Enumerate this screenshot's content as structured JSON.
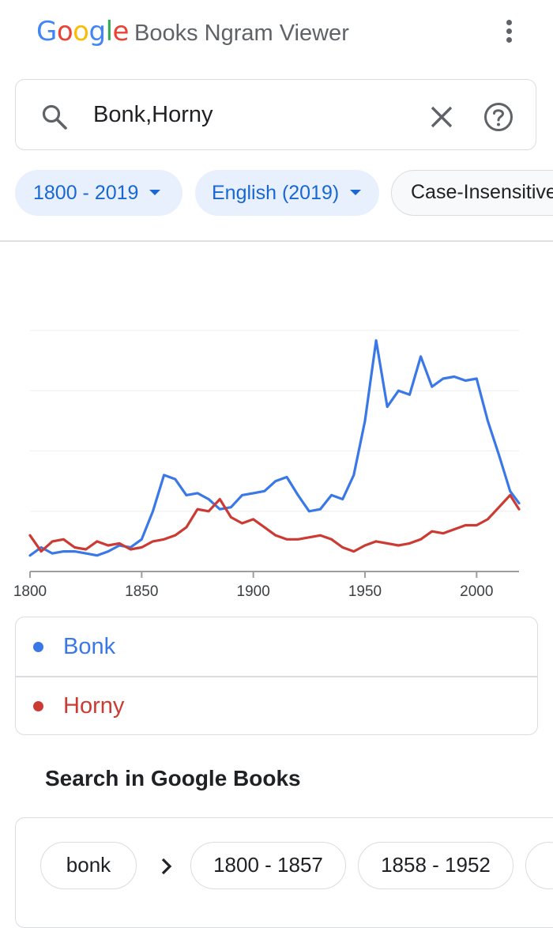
{
  "header": {
    "logo_letters": [
      {
        "ch": "G",
        "color": "#4285f4"
      },
      {
        "ch": "o",
        "color": "#ea4335"
      },
      {
        "ch": "o",
        "color": "#fbbc05"
      },
      {
        "ch": "g",
        "color": "#4285f4"
      },
      {
        "ch": "l",
        "color": "#34a853"
      },
      {
        "ch": "e",
        "color": "#ea4335"
      }
    ],
    "title": "Books Ngram Viewer",
    "menu_icon": "more-vert-icon"
  },
  "search": {
    "value": "Bonk,Horny",
    "search_icon": "search-icon",
    "clear_icon": "close-icon",
    "help_icon": "help-icon"
  },
  "filters": {
    "year_range": "1800 - 2019",
    "corpus": "English (2019)",
    "case": "Case-Insensitive"
  },
  "chart_data": {
    "type": "line",
    "x": [
      1800,
      1805,
      1810,
      1815,
      1820,
      1825,
      1830,
      1835,
      1840,
      1845,
      1850,
      1855,
      1860,
      1865,
      1870,
      1875,
      1880,
      1885,
      1890,
      1895,
      1900,
      1905,
      1910,
      1915,
      1920,
      1925,
      1930,
      1935,
      1940,
      1945,
      1950,
      1955,
      1960,
      1965,
      1970,
      1975,
      1980,
      1985,
      1990,
      1995,
      2000,
      2005,
      2010,
      2015,
      2019
    ],
    "series": [
      {
        "name": "Bonk",
        "color": "#3b78e7",
        "values": [
          0.8,
          1.2,
          0.9,
          1.0,
          1.0,
          0.9,
          0.8,
          1.0,
          1.3,
          1.2,
          1.6,
          3.0,
          4.8,
          4.6,
          3.8,
          3.9,
          3.6,
          3.1,
          3.2,
          3.8,
          3.9,
          4.0,
          4.5,
          4.7,
          3.8,
          3.0,
          3.1,
          3.8,
          3.6,
          4.8,
          7.5,
          11.5,
          8.2,
          9.0,
          8.8,
          10.7,
          9.2,
          9.6,
          9.7,
          9.5,
          9.6,
          7.5,
          5.8,
          4.0,
          3.4
        ]
      },
      {
        "name": "Horny",
        "color": "#cc3b33",
        "values": [
          1.8,
          1.0,
          1.5,
          1.6,
          1.2,
          1.1,
          1.5,
          1.3,
          1.4,
          1.1,
          1.2,
          1.5,
          1.6,
          1.8,
          2.2,
          3.1,
          3.0,
          3.6,
          2.7,
          2.4,
          2.6,
          2.2,
          1.8,
          1.6,
          1.6,
          1.7,
          1.8,
          1.6,
          1.2,
          1.0,
          1.3,
          1.5,
          1.4,
          1.3,
          1.4,
          1.6,
          2.0,
          1.9,
          2.1,
          2.3,
          2.3,
          2.6,
          3.2,
          3.8,
          3.1
        ]
      }
    ],
    "x_ticks": [
      "1800",
      "1850",
      "1900",
      "1950",
      "2000"
    ],
    "xlim": [
      1800,
      2019
    ],
    "ylim": [
      0,
      12
    ],
    "grid": true
  },
  "legend": [
    {
      "label": "Bonk",
      "color": "#3b78e7"
    },
    {
      "label": "Horny",
      "color": "#cc3b33"
    }
  ],
  "books": {
    "section_title": "Search in Google Books",
    "term": "bonk",
    "ranges": [
      "1800 - 1857",
      "1858 - 1952"
    ],
    "chevron_icon": "chevron-right-icon"
  }
}
